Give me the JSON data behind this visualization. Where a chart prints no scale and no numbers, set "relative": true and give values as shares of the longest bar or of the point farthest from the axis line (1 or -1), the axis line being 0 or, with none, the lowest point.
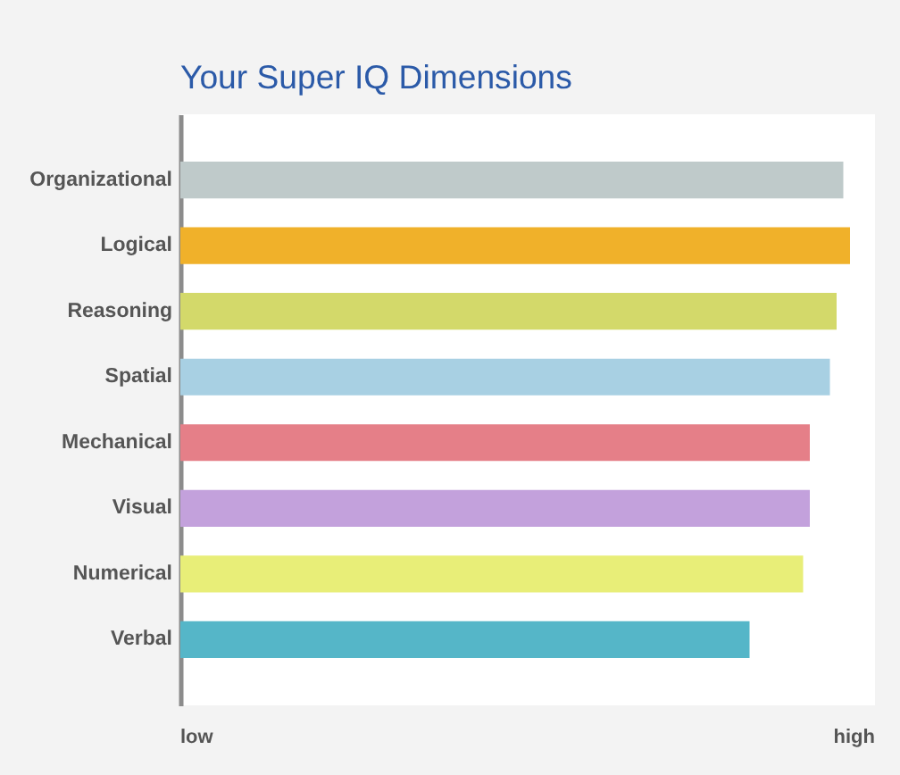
{
  "chart_data": {
    "type": "bar",
    "orientation": "horizontal",
    "relative": true,
    "title": "Your Super IQ Dimensions",
    "categories": [
      "Organizational",
      "Logical",
      "Reasoning",
      "Spatial",
      "Mechanical",
      "Visual",
      "Numerical",
      "Verbal"
    ],
    "values": [
      0.99,
      1,
      0.98,
      0.97,
      0.94,
      0.94,
      0.93,
      0.85
    ],
    "colors": [
      "#bfcaca",
      "#f0b12a",
      "#d3d96a",
      "#a8d0e3",
      "#e57f88",
      "#c3a1dc",
      "#e8ee78",
      "#55b6c8"
    ],
    "annotations": [
      "low",
      "high"
    ]
  }
}
